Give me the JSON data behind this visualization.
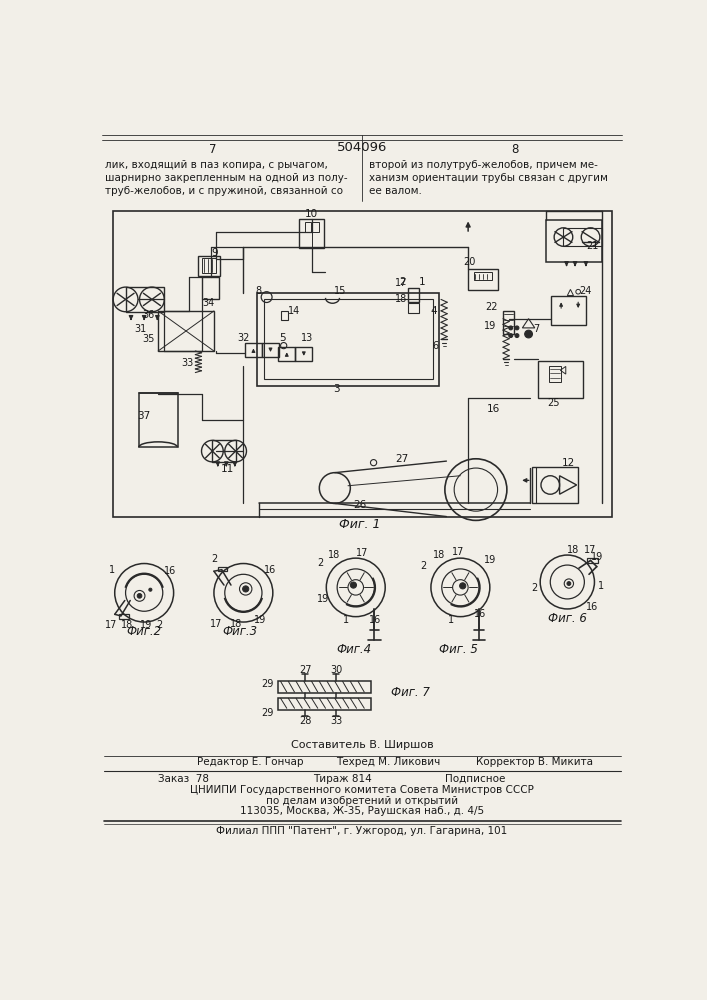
{
  "page_color": "#f2efe8",
  "text_color": "#1a1a1a",
  "patent_number": "504096",
  "page_left": "7",
  "page_right": "8",
  "header_left": "лик, входящий в паз копира, с рычагом,\nшарнирно закрепленным на одной из полу-\nтруб-желобов, и с пружиной, связанной со",
  "header_right": "второй из полутруб-желобов, причем ме-\nханизм ориентации трубы связан с другим\nее валом.",
  "fig1_label": "Фиг. 1",
  "fig2_label": "Фиг.2",
  "fig3_label": "Фиг.3",
  "fig4_label": "Фиг.4",
  "fig5_label": "Фиг. 5",
  "fig6_label": "Фиг. 6",
  "fig7_label": "Фиг. 7",
  "footer_line1": "Составитель В. Ширшов",
  "footer_line2a": "Редактор Е. Гончар",
  "footer_line2b": "Техред М. Ликович",
  "footer_line2c": "Корректор В. Микита",
  "footer_line3a": "Заказ  78",
  "footer_line3b": "Тираж 814",
  "footer_line3c": "Подписное",
  "footer_line4": "ЦНИИПИ Государственного комитета Совета Министров СССР",
  "footer_line5": "по делам изобретений и открытий",
  "footer_line6": "113035, Москва, Ж-35, Раушская наб., д. 4/5",
  "footer_line7": "Филиал ППП \"Патент\", г. Ужгород, ул. Гагарина, 101"
}
